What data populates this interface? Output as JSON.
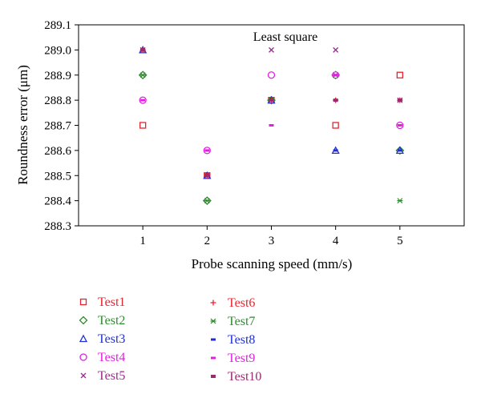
{
  "chart_data": {
    "type": "scatter",
    "title": "Least square",
    "xlabel": "Probe scanning speed (mm/s)",
    "ylabel": "Roundness error (μm)",
    "xlim": [
      0,
      6
    ],
    "ylim": [
      288.3,
      289.1
    ],
    "x_ticks": [
      1,
      2,
      3,
      4,
      5
    ],
    "y_ticks": [
      "288.3",
      "288.4",
      "288.5",
      "288.6",
      "288.7",
      "288.8",
      "288.9",
      "289.0",
      "289.1"
    ],
    "grid": false,
    "legend_position": "bottom",
    "series": [
      {
        "name": "Test1",
        "marker": "square",
        "color": "#e8232e",
        "x": [
          1,
          2,
          3,
          4,
          5
        ],
        "y": [
          288.7,
          288.5,
          288.8,
          288.7,
          288.9
        ]
      },
      {
        "name": "Test2",
        "marker": "diamond",
        "color": "#2e8b2e",
        "x": [
          1,
          2,
          3,
          4,
          5
        ],
        "y": [
          288.9,
          288.4,
          288.8,
          288.9,
          288.6
        ]
      },
      {
        "name": "Test3",
        "marker": "triangle",
        "color": "#1f2fd6",
        "x": [
          1,
          2,
          3,
          4,
          5
        ],
        "y": [
          289.0,
          288.5,
          288.8,
          288.6,
          288.6
        ]
      },
      {
        "name": "Test4",
        "marker": "circle",
        "color": "#e020e0",
        "x": [
          1,
          2,
          3,
          4,
          5
        ],
        "y": [
          288.8,
          288.6,
          288.9,
          288.9,
          288.7
        ]
      },
      {
        "name": "Test5",
        "marker": "x",
        "color": "#9b2a8e",
        "x": [
          1,
          2,
          3,
          4,
          5
        ],
        "y": [
          289.0,
          288.5,
          289.0,
          289.0,
          288.8
        ]
      },
      {
        "name": "Test6",
        "marker": "plus",
        "color": "#e8232e",
        "x": [
          1,
          2,
          3,
          4,
          5
        ],
        "y": [
          289.0,
          288.5,
          288.8,
          288.8,
          288.8
        ]
      },
      {
        "name": "Test7",
        "marker": "asterisk",
        "color": "#2e8b2e",
        "x": [
          1,
          2,
          3,
          4,
          5
        ],
        "y": [
          288.9,
          288.4,
          288.8,
          288.9,
          288.4
        ]
      },
      {
        "name": "Test8",
        "marker": "bar",
        "color": "#1f2fd6",
        "x": [
          1,
          2,
          3,
          4,
          5
        ],
        "y": [
          289.0,
          288.5,
          288.8,
          288.6,
          288.6
        ]
      },
      {
        "name": "Test9",
        "marker": "bar",
        "color": "#e020e0",
        "x": [
          1,
          2,
          3,
          4,
          5
        ],
        "y": [
          288.8,
          288.6,
          288.7,
          288.9,
          288.7
        ]
      },
      {
        "name": "Test10",
        "marker": "bar-thick",
        "color": "#9b2a6e",
        "x": [
          1,
          2,
          3,
          4,
          5
        ],
        "y": [
          289.0,
          288.5,
          288.8,
          288.8,
          288.8
        ]
      }
    ]
  }
}
